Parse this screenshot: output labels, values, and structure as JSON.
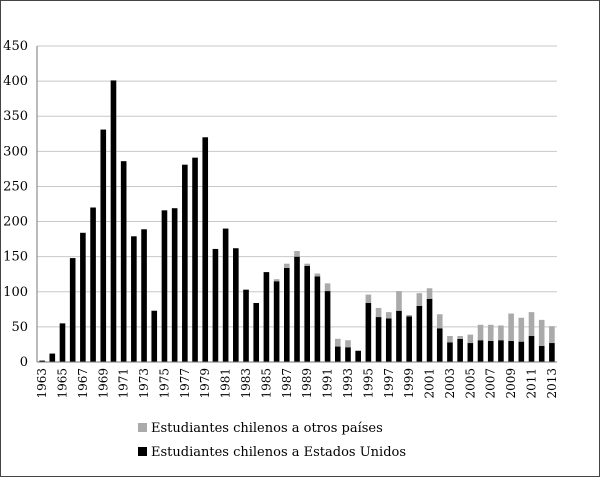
{
  "chart_data": {
    "type": "bar",
    "stacked": true,
    "title": "",
    "xlabel": "",
    "ylabel": "",
    "ylim": [
      0,
      450
    ],
    "yticks": [
      0,
      50,
      100,
      150,
      200,
      250,
      300,
      350,
      400,
      450
    ],
    "grid": true,
    "legend_position": "bottom",
    "x": [
      1963,
      1964,
      1965,
      1966,
      1967,
      1968,
      1969,
      1970,
      1971,
      1972,
      1973,
      1974,
      1975,
      1976,
      1977,
      1978,
      1979,
      1980,
      1981,
      1982,
      1983,
      1984,
      1985,
      1986,
      1987,
      1988,
      1989,
      1990,
      1991,
      1992,
      1993,
      1994,
      1995,
      1996,
      1997,
      1998,
      1999,
      2000,
      2001,
      2002,
      2003,
      2004,
      2005,
      2006,
      2007,
      2008,
      2009,
      2010,
      2011,
      2012,
      2013
    ],
    "xtick_labels": [
      "1963",
      "1965",
      "1967",
      "1969",
      "1971",
      "1973",
      "1975",
      "1977",
      "1979",
      "1981",
      "1983",
      "1985",
      "1987",
      "1989",
      "1991",
      "1993",
      "1995",
      "1997",
      "1999",
      "2001",
      "2003",
      "2005",
      "2007",
      "2009",
      "2011",
      "2013"
    ],
    "series": [
      {
        "name": "Estudiantes chilenos a Estados Unidos",
        "color": "#000000",
        "values": [
          2,
          12,
          55,
          148,
          184,
          220,
          331,
          401,
          286,
          179,
          189,
          73,
          216,
          219,
          281,
          291,
          320,
          161,
          190,
          162,
          103,
          84,
          128,
          115,
          134,
          150,
          137,
          122,
          101,
          22,
          21,
          16,
          84,
          64,
          62,
          73,
          65,
          80,
          90,
          48,
          28,
          33,
          27,
          31,
          30,
          31,
          30,
          29,
          37,
          23,
          27
        ]
      },
      {
        "name": "Estudiantes chilenos a otros países",
        "color": "#aaaaaa",
        "values": [
          0,
          0,
          0,
          0,
          0,
          0,
          0,
          0,
          0,
          0,
          0,
          0,
          0,
          0,
          0,
          0,
          0,
          0,
          0,
          0,
          0,
          0,
          0,
          3,
          6,
          8,
          3,
          4,
          11,
          11,
          10,
          0,
          12,
          13,
          9,
          28,
          2,
          18,
          15,
          20,
          9,
          4,
          12,
          22,
          23,
          21,
          39,
          34,
          34,
          37,
          24
        ]
      }
    ]
  }
}
